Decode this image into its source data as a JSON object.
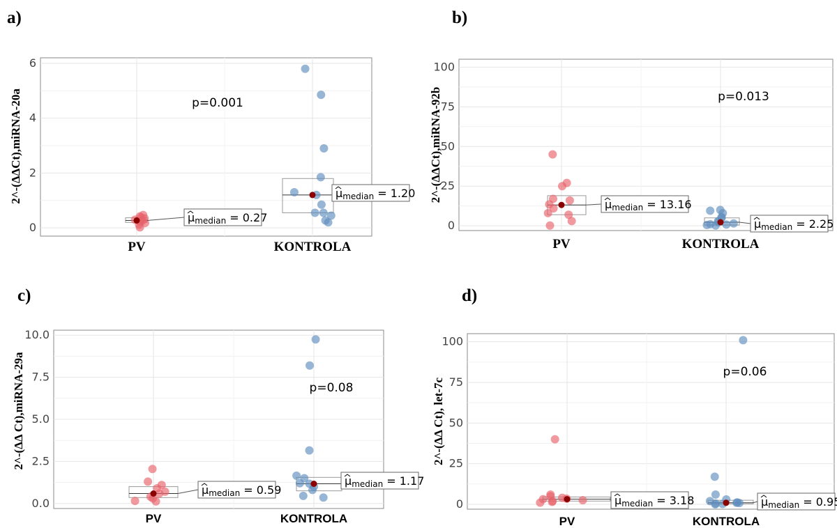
{
  "chart_data": [
    {
      "type": "scatter",
      "panel_label": "a)",
      "ylabel": "2^-(ΔΔCt),miRNA-20a",
      "yticks": [
        "0",
        "2",
        "4",
        "6"
      ],
      "ylim": [
        -0.3,
        6.2
      ],
      "categories": [
        "PV",
        "KONTROLA"
      ],
      "p_value_text": "p=0.001",
      "series": [
        {
          "category": "PV",
          "color": "#e8636b",
          "values": [
            0.02,
            0.12,
            0.18,
            0.22,
            0.27,
            0.3,
            0.35,
            0.38,
            0.42,
            0.47
          ],
          "median": 0.27,
          "q1": 0.2,
          "q3": 0.37,
          "median_label": "μ̂median = 0.27",
          "median_value_text": "= 0.27"
        },
        {
          "category": "KONTROLA",
          "color": "#5f8dbd",
          "values": [
            0.2,
            0.27,
            0.45,
            0.55,
            0.55,
            0.85,
            1.2,
            1.3,
            1.85,
            2.9,
            4.85,
            5.8
          ],
          "median": 1.2,
          "q1": 0.55,
          "q3": 1.8,
          "median_label": "μ̂median = 1.20",
          "median_value_text": "= 1.20"
        }
      ]
    },
    {
      "type": "scatter",
      "panel_label": "b)",
      "ylabel": "2^-(ΔΔCt),miRNA-92b",
      "yticks": [
        "0",
        "25",
        "50",
        "75",
        "100"
      ],
      "ylim": [
        -3,
        105
      ],
      "categories": [
        "PV",
        "KONTROLA"
      ],
      "p_value_text": "p=0.013",
      "series": [
        {
          "category": "PV",
          "color": "#e8636b",
          "values": [
            0.2,
            3,
            7,
            8,
            11,
            13.5,
            16,
            17,
            25,
            27,
            45
          ],
          "median": 13.16,
          "q1": 7,
          "q3": 19,
          "median_label": "μ̂median = 13.16",
          "median_value_text": "= 13.16"
        },
        {
          "category": "KONTROLA",
          "color": "#5f8dbd",
          "values": [
            0.2,
            0.5,
            0.8,
            1,
            1.5,
            2.25,
            3,
            5,
            5.5,
            8,
            9.5,
            10
          ],
          "median": 2.25,
          "q1": 0.5,
          "q3": 5,
          "median_label": "μ̂median = 2.25",
          "median_value_text": "= 2.25"
        }
      ]
    },
    {
      "type": "scatter",
      "panel_label": "c)",
      "ylabel": "2^-(ΔΔ Ct),miRNA-29a",
      "yticks": [
        "0.0",
        "2.5",
        "5.0",
        "7.5",
        "10.0"
      ],
      "ylim": [
        -0.3,
        10.3
      ],
      "categories": [
        "PV",
        "KONTROLA"
      ],
      "p_value_text": "p=0.08",
      "series": [
        {
          "category": "PV",
          "color": "#e8636b",
          "values": [
            0.12,
            0.15,
            0.3,
            0.4,
            0.59,
            0.7,
            0.9,
            1.1,
            1.3,
            2.05
          ],
          "median": 0.59,
          "q1": 0.35,
          "q3": 1.0,
          "median_label": "μ̂median = 0.59",
          "median_value_text": "= 0.59"
        },
        {
          "category": "KONTROLA",
          "color": "#5f8dbd",
          "values": [
            0.35,
            0.45,
            0.8,
            1.0,
            1.17,
            1.2,
            1.5,
            1.65,
            3.15,
            8.2,
            9.75
          ],
          "median": 1.17,
          "q1": 0.75,
          "q3": 1.55,
          "median_label": "μ̂median = 1.17",
          "median_value_text": "= 1.17"
        }
      ]
    },
    {
      "type": "scatter",
      "panel_label": "d)",
      "ylabel": "2^-(ΔΔ Ct), let-7c",
      "yticks": [
        "0",
        "25",
        "50",
        "75",
        "100"
      ],
      "ylim": [
        -3,
        105
      ],
      "categories": [
        "PV",
        "KONTROLA"
      ],
      "p_value_text": "p=0.06",
      "series": [
        {
          "category": "PV",
          "color": "#e8636b",
          "values": [
            1,
            1.5,
            2,
            2.5,
            3.18,
            3.5,
            4,
            5,
            6,
            40
          ],
          "median": 3.18,
          "q1": 2,
          "q3": 4.5,
          "median_label": "μ̂median = 3.18",
          "median_value_text": "= 3.18"
        },
        {
          "category": "KONTROLA",
          "color": "#5f8dbd",
          "values": [
            0,
            0.2,
            0.5,
            0.8,
            0.95,
            1.2,
            2,
            3,
            6,
            17,
            101
          ],
          "median": 0.95,
          "q1": 0.3,
          "q3": 2.5,
          "median_label": "μ̂median = 0.95",
          "median_value_text": "= 0.95"
        }
      ]
    }
  ]
}
